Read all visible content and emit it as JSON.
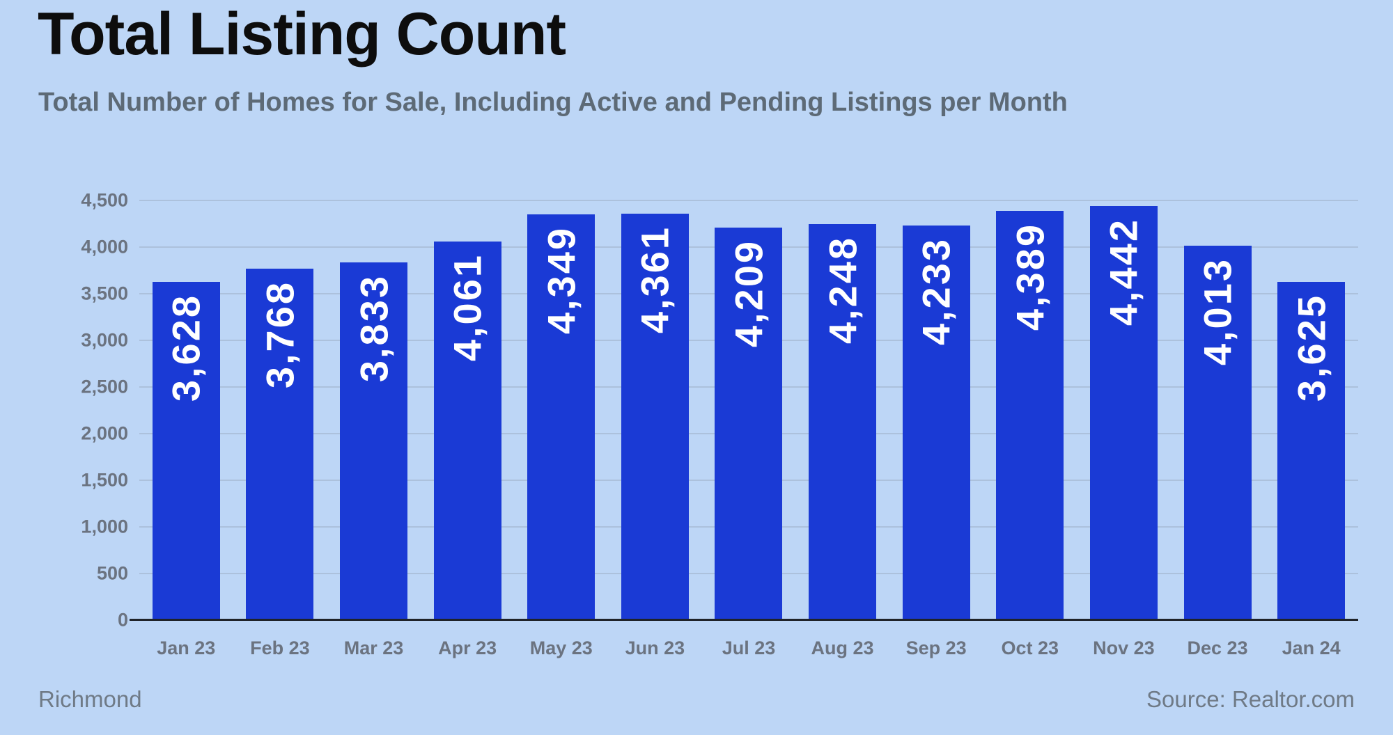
{
  "header": {
    "title": "Total Listing Count",
    "subtitle": "Total Number of Homes for Sale, Including Active and Pending Listings per Month"
  },
  "footer": {
    "left": "Richmond",
    "right": "Source: Realtor.com"
  },
  "colors": {
    "background": "#bdd6f6",
    "bar": "#1a3ad5",
    "bar_label": "#ffffff",
    "title": "#0d0d0d",
    "subtitle": "#5d6a76",
    "axis_label": "#6b7380",
    "grid": "#9fb0c6",
    "baseline": "#1f2329",
    "footer": "#6f7a86"
  },
  "chart_data": {
    "type": "bar",
    "title": "Total Listing Count",
    "subtitle": "Total Number of Homes for Sale, Including Active and Pending Listings per Month",
    "categories": [
      "Jan 23",
      "Feb 23",
      "Mar 23",
      "Apr 23",
      "May 23",
      "Jun 23",
      "Jul 23",
      "Aug 23",
      "Sep 23",
      "Oct 23",
      "Nov 23",
      "Dec 23",
      "Jan 24"
    ],
    "values": [
      3628,
      3768,
      3833,
      4061,
      4349,
      4361,
      4209,
      4248,
      4233,
      4389,
      4442,
      4013,
      3625
    ],
    "value_labels": [
      "3,628",
      "3,768",
      "3,833",
      "4,061",
      "4,349",
      "4,361",
      "4,209",
      "4,248",
      "4,233",
      "4,389",
      "4,442",
      "4,013",
      "3,625"
    ],
    "xlabel": "",
    "ylabel": "",
    "ylim": [
      0,
      4500
    ],
    "ytick_interval": 500,
    "ytick_labels": [
      "0",
      "500",
      "1,000",
      "1,500",
      "2,000",
      "2,500",
      "3,000",
      "3,500",
      "4,000",
      "4,500"
    ],
    "grid": "horizontal",
    "legend": "none",
    "value_label_rotation": 90,
    "footnote_left": "Richmond",
    "footnote_right": "Source: Realtor.com"
  }
}
